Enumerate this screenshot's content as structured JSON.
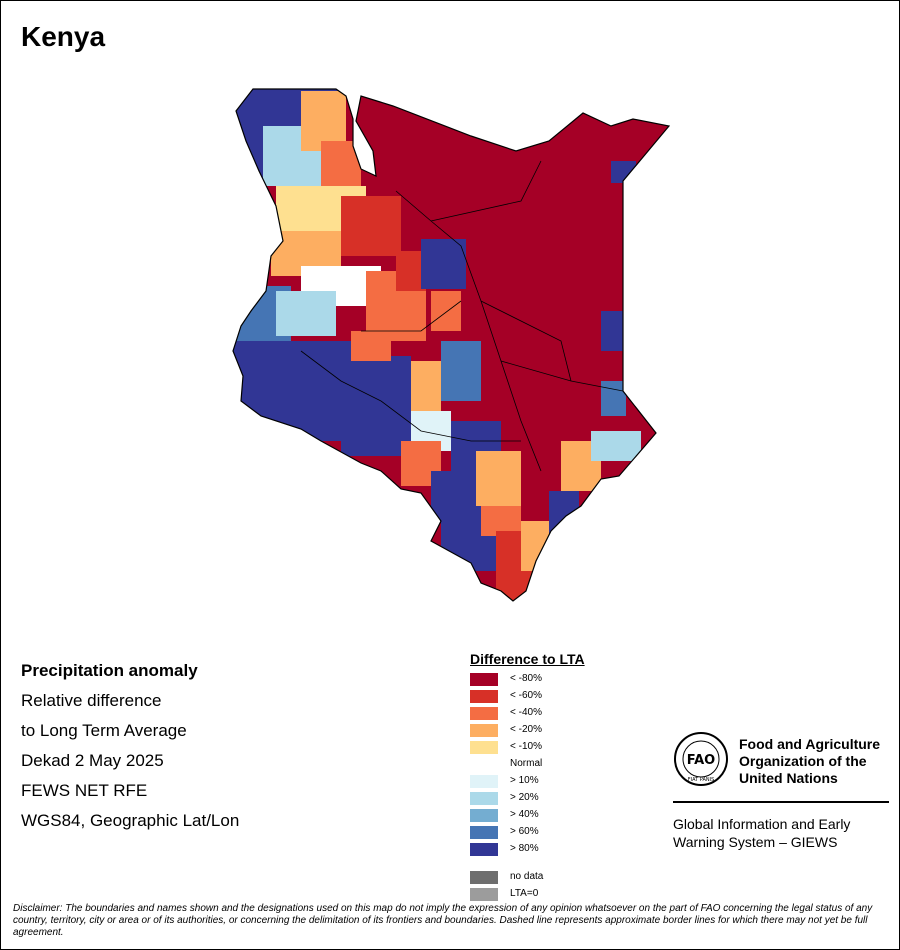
{
  "map": {
    "title": "Kenya"
  },
  "info": {
    "lines": [
      "Precipitation anomaly",
      "Relative difference",
      "to Long Term Average",
      "Dekad 2 May 2025",
      "FEWS NET RFE",
      "WGS84, Geographic Lat/Lon"
    ]
  },
  "legend": {
    "title": "Difference to LTA",
    "items": [
      {
        "label": "< -80%",
        "color": "#a50026"
      },
      {
        "label": "< -60%",
        "color": "#d73027"
      },
      {
        "label": "< -40%",
        "color": "#f46d43"
      },
      {
        "label": "< -20%",
        "color": "#fdae61"
      },
      {
        "label": "< -10%",
        "color": "#fee090"
      },
      {
        "label": "Normal",
        "color": "#ffffff"
      },
      {
        "label": "> 10%",
        "color": "#e0f3f8"
      },
      {
        "label": "> 20%",
        "color": "#abd9e9"
      },
      {
        "label": "> 40%",
        "color": "#74add1"
      },
      {
        "label": "> 60%",
        "color": "#4575b4"
      },
      {
        "label": "> 80%",
        "color": "#313695"
      },
      {
        "label": "no data",
        "color": "#6e6e6e"
      },
      {
        "label": "LTA=0",
        "color": "#9c9c9c"
      }
    ]
  },
  "fao": {
    "org_line1": "Food and Agriculture",
    "org_line2": "Organization of the",
    "org_line3": "United Nations",
    "logo_text": "FAO",
    "logo_motto": "FIAT PANIS",
    "system_line1": "Global Information and Early",
    "system_line2": "Warning System – GIEWS"
  },
  "disclaimer": "Disclaimer: The boundaries and names shown and the designations used on this map do not imply the expression of any opinion whatsoever on the part of FAO concerning the legal status of any country, territory, city or area or of its authorities, or concerning the delimitation of its frontiers and boundaries. Dashed line represents approximate border lines for which there may not yet be full agreement."
}
